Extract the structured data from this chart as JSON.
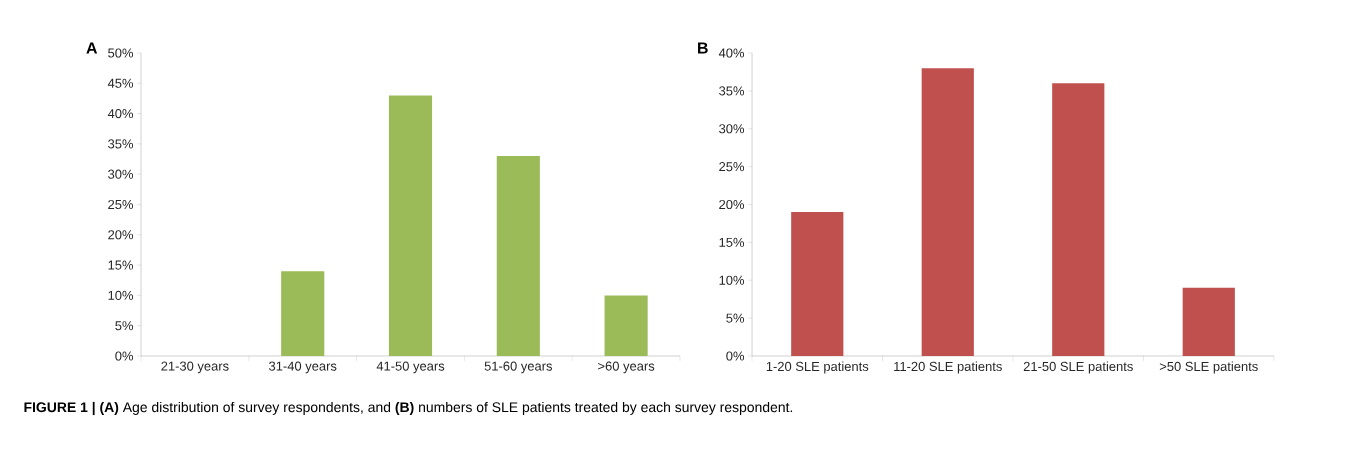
{
  "chart_data": [
    {
      "type": "bar",
      "title": "A",
      "categories": [
        "21-30 years",
        "31-40 years",
        "41-50 years",
        "51-60 years",
        ">60 years"
      ],
      "values": [
        0,
        14,
        43,
        33,
        10
      ],
      "color": "#9bbb59",
      "ylim": [
        0,
        50
      ],
      "yticks": [
        {
          "value": 0,
          "label": "0%"
        },
        {
          "value": 5,
          "label": "5%"
        },
        {
          "value": 10,
          "label": "10%"
        },
        {
          "value": 15,
          "label": "15%"
        },
        {
          "value": 20,
          "label": "20%"
        },
        {
          "value": 25,
          "label": "25%"
        },
        {
          "value": 30,
          "label": "30%"
        },
        {
          "value": 35,
          "label": "35%"
        },
        {
          "value": 40,
          "label": "40%"
        },
        {
          "value": 45,
          "label": "45%"
        },
        {
          "value": 50,
          "label": "50%"
        }
      ],
      "annotations": [
        "**FIGURE 1 | (A)** Age distribution of survey respondents, and **(B)** numbers of SLE patients treated by each survey respondent."
      ]
    },
    {
      "type": "bar",
      "title": "B",
      "categories": [
        "1-20 SLE patients",
        "11-20 SLE patients",
        "21-50 SLE patients",
        ">50 SLE patients"
      ],
      "values": [
        19,
        38,
        36,
        9
      ],
      "color": "#c0504d",
      "ylim": [
        0,
        40
      ],
      "yticks": [
        {
          "value": 0,
          "label": "0%"
        },
        {
          "value": 5,
          "label": "5%"
        },
        {
          "value": 10,
          "label": "10%"
        },
        {
          "value": 15,
          "label": "15%"
        },
        {
          "value": 20,
          "label": "20%"
        },
        {
          "value": 25,
          "label": "25%"
        },
        {
          "value": 30,
          "label": "30%"
        },
        {
          "value": 35,
          "label": "35%"
        },
        {
          "value": 40,
          "label": "40%"
        }
      ]
    }
  ]
}
